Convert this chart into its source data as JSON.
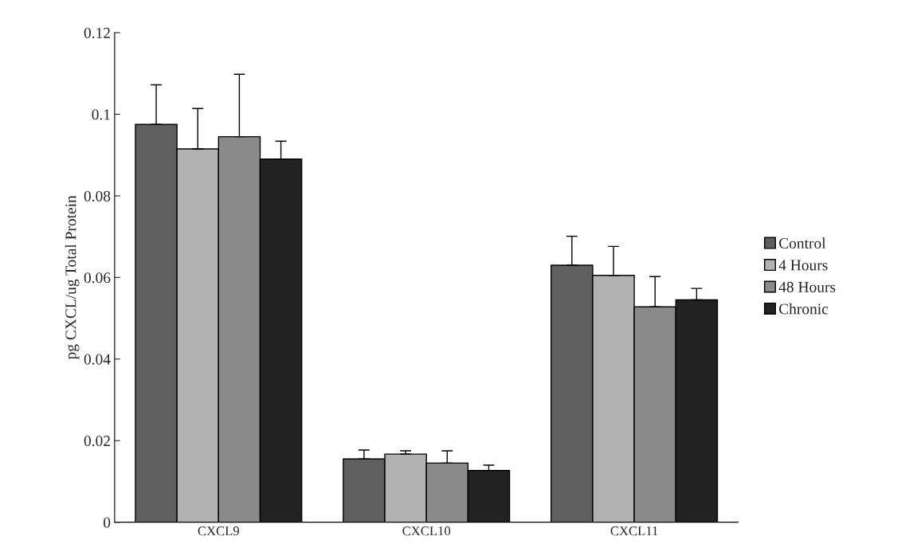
{
  "chart_data": {
    "type": "bar",
    "ylabel": "pg CXCL/ug Total Protein",
    "categories": [
      "CXCL9",
      "CXCL10",
      "CXCL11"
    ],
    "series": [
      {
        "name": "Control",
        "color": "#5f5f5f",
        "values": [
          0.0975,
          0.0155,
          0.063
        ],
        "errors": [
          [
            0.0975,
            0.1072
          ],
          [
            0.0155,
            0.0177
          ],
          [
            0.063,
            0.0701
          ]
        ]
      },
      {
        "name": "4 Hours",
        "color": "#b2b2b2",
        "values": [
          0.0915,
          0.0167,
          0.0605
        ],
        "errors": [
          [
            0.0915,
            0.1014
          ],
          [
            0.0167,
            0.0175
          ],
          [
            0.0605,
            0.0676
          ]
        ]
      },
      {
        "name": "48 Hours",
        "color": "#8a8a8a",
        "values": [
          0.0945,
          0.0145,
          0.0528
        ],
        "errors": [
          [
            0.0945,
            0.1098
          ],
          [
            0.0145,
            0.0175
          ],
          [
            0.0528,
            0.0602
          ]
        ]
      },
      {
        "name": "Chronic",
        "color": "#222222",
        "values": [
          0.089,
          0.0127,
          0.0545
        ],
        "errors": [
          [
            0.089,
            0.0934
          ],
          [
            0.0127,
            0.014
          ],
          [
            0.0545,
            0.0573
          ]
        ]
      }
    ],
    "ylim": [
      0,
      0.12
    ],
    "yticks": [
      0,
      0.02,
      0.04,
      0.06,
      0.08,
      0.1,
      0.12
    ],
    "grid": false,
    "legend": "right"
  }
}
